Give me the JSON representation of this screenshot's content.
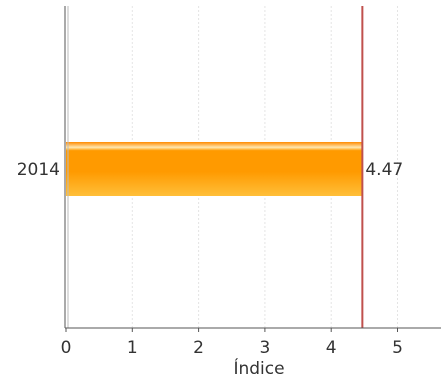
{
  "chart_data": {
    "type": "bar",
    "orientation": "horizontal",
    "categories": [
      "2014"
    ],
    "values": [
      4.47
    ],
    "data_labels": [
      "4.47"
    ],
    "title": "",
    "xlabel": "Índice",
    "ylabel": "",
    "xlim": [
      0,
      5.65
    ],
    "x_ticks": [
      "0",
      "1",
      "2",
      "3",
      "4",
      "5"
    ],
    "reference_line": {
      "value": 4.47,
      "color": "#c0504d"
    },
    "grid": true,
    "legend": "none",
    "colors": {
      "bar_top": "#ffbf3a",
      "bar_mid": "#ff9a00",
      "bar_bottom": "#ff8a00",
      "bar_highlight": "#ffe7b0",
      "axis": "#555555",
      "grid": "#e4e4e4"
    }
  }
}
